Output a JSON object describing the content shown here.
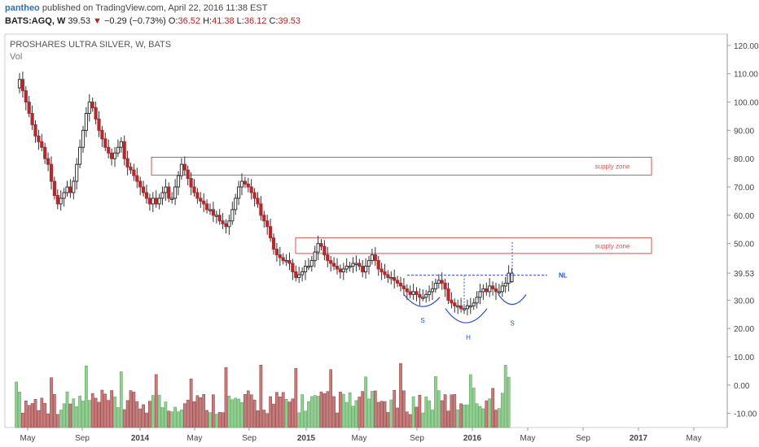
{
  "header": {
    "user": "pantheo",
    "published_text": "published on TradingView.com, April 22, 2016 11:38 EST",
    "symbol": "BATS:AGQ, W",
    "last": "39.53",
    "change": "−0.29 (−0.73%)",
    "open_label": "O:",
    "open": "36.52",
    "high_label": "H:",
    "high": "41.38",
    "low_label": "L:",
    "low": "36.12",
    "close_label": "C:",
    "close": "39.53"
  },
  "legend": {
    "title": "PROSHARES ULTRA SILVER, W, BATS",
    "volume_label": "Vol"
  },
  "colors": {
    "up": "#8fcf8f",
    "down": "#b22a2e",
    "vol_up": "#8fcf8f",
    "vol_down": "#c77b7b",
    "zone": "#d9534f",
    "pattern": "#2c4fd0"
  },
  "chart_data": {
    "type": "candlestick",
    "title": "PROSHARES ULTRA SILVER, W, BATS",
    "price_axis_ticks": [
      120,
      110,
      100,
      90,
      80,
      70,
      60,
      50,
      40,
      30,
      20,
      10,
      0,
      -10
    ],
    "price_axis_labels": [
      "120.00",
      "110.00",
      "100.00",
      "90.00",
      "80.00",
      "70.00",
      "60.00",
      "50.00",
      "39.53",
      "30.00",
      "20.00",
      "10.00",
      "0.00",
      "-10.00"
    ],
    "last_price": 39.53,
    "ylim": [
      -15,
      124
    ],
    "time_axis_labels": [
      "May",
      "Sep",
      "2014",
      "May",
      "Sep",
      "2015",
      "May",
      "Sep",
      "2016",
      "May",
      "Sep",
      "2017",
      "May"
    ],
    "price_path": [
      105,
      108,
      104,
      100,
      96,
      92,
      88,
      86,
      84,
      80,
      78,
      72,
      67,
      64,
      66,
      68,
      70,
      68,
      72,
      78,
      84,
      90,
      96,
      100,
      98,
      94,
      90,
      87,
      84,
      82,
      80,
      82,
      84,
      86,
      80,
      77,
      76,
      74,
      72,
      70,
      68,
      66,
      64,
      66,
      64,
      66,
      68,
      70,
      66,
      66,
      70,
      74,
      78,
      76,
      73,
      70,
      68,
      66,
      65,
      64,
      62,
      62,
      60,
      60,
      58,
      57,
      56,
      58,
      62,
      66,
      70,
      72,
      71,
      70,
      68,
      66,
      64,
      60,
      58,
      56,
      52,
      48,
      46,
      45,
      44,
      44,
      43,
      40,
      38,
      39,
      40,
      42,
      42,
      44,
      47,
      50,
      49,
      46,
      44,
      43,
      42,
      41,
      40,
      41,
      42,
      42,
      43,
      43,
      42,
      40,
      42,
      44,
      46,
      44,
      41,
      40,
      39,
      38,
      38,
      37,
      36,
      35,
      34,
      33,
      32,
      33,
      32,
      31,
      31,
      32,
      33,
      34,
      36,
      37,
      36,
      34,
      30,
      29,
      28,
      28,
      27,
      27,
      28,
      28,
      29,
      31,
      33,
      34,
      33,
      35,
      34,
      33,
      33,
      35,
      36,
      39.53
    ],
    "supply_zones": [
      {
        "label": "supply zone",
        "upper": 80.5,
        "lower": 74.2
      },
      {
        "label": "supply zone",
        "upper": 52.0,
        "lower": 46.5
      }
    ],
    "neckline": {
      "label": "NL",
      "value": 38.8
    },
    "pattern_labels": [
      "S",
      "H",
      "S"
    ],
    "volume_series_label": "Vol"
  }
}
